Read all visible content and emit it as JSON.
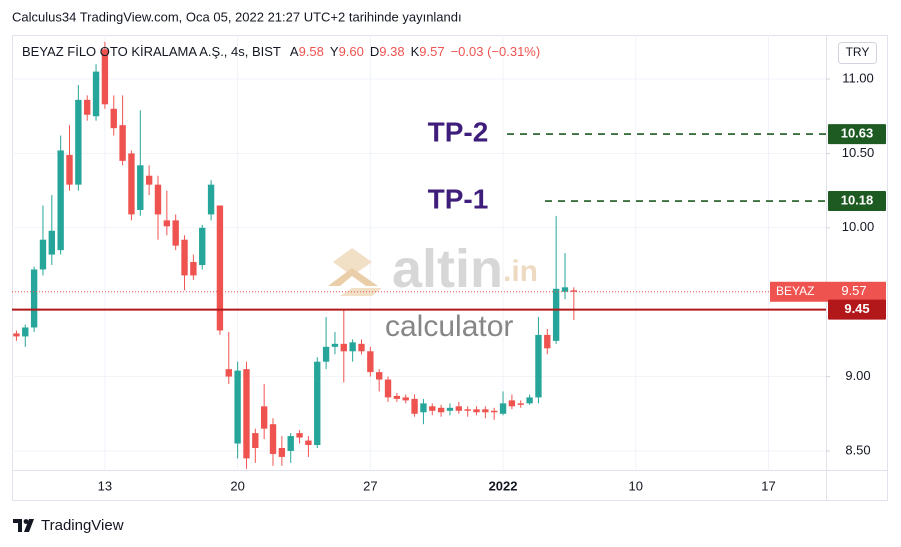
{
  "header": "Calculus34 TradingView.com, Oca 05, 2022 21:27 UTC+2 tarihinde yayınlandı",
  "footer": "TradingView",
  "chart_data": {
    "type": "candlestick",
    "symbol": "BEYAZ FİLO OTO KİRALAMA A.Ş., 4s, BIST",
    "legend_values": [
      {
        "key": "A",
        "label": "9.58"
      },
      {
        "key": "Y",
        "label": "9.60"
      },
      {
        "key": "D",
        "label": "9.38"
      },
      {
        "key": "K",
        "label": "9.57"
      }
    ],
    "change": "−0.03 (−0.31%)",
    "currency": "TRY",
    "ticker": "BEYAZ",
    "watermark": {
      "brand": "altin",
      "suffix": ".in",
      "sub": "calculator"
    },
    "up_color": "#26a69a",
    "down_color": "#ef5350",
    "grid": true,
    "categories": [
      null,
      null,
      null,
      null,
      null,
      null,
      null,
      null,
      null,
      null,
      "13",
      null,
      null,
      null,
      null,
      null,
      null,
      null,
      null,
      null,
      null,
      null,
      null,
      null,
      null,
      "20",
      null,
      null,
      null,
      null,
      null,
      null,
      null,
      null,
      null,
      null,
      null,
      null,
      null,
      null,
      "27",
      null,
      null,
      null,
      null,
      null,
      null,
      null,
      null,
      null,
      null,
      null,
      null,
      null,
      null,
      "2022",
      null,
      null,
      null,
      null,
      null,
      null,
      null,
      null,
      null,
      null,
      null,
      null,
      null,
      null,
      "10",
      null,
      null,
      null,
      null,
      null,
      null,
      null,
      null,
      null,
      null,
      null,
      null,
      null,
      null,
      "17",
      null,
      null,
      null,
      null,
      null,
      null
    ],
    "open": [
      9.29,
      9.27,
      9.33,
      9.72,
      9.82,
      9.85,
      10.49,
      10.29,
      10.86,
      10.75,
      11.2,
      10.8,
      10.69,
      10.5,
      10.12,
      10.35,
      10.29,
      10.05,
      10.05,
      9.92,
      9.77,
      9.75,
      10.09,
      10.15,
      9.05,
      8.55,
      9.05,
      8.62,
      8.8,
      8.68,
      8.52,
      8.5,
      8.62,
      8.57,
      8.54,
      9.1,
      9.2,
      9.22,
      9.17,
      9.22,
      9.17,
      9.03,
      8.98,
      8.87,
      8.86,
      8.85,
      8.76,
      8.8,
      8.79,
      8.77,
      8.8,
      8.78,
      8.78,
      8.78,
      8.77,
      8.75,
      8.84,
      8.82,
      8.82,
      8.86,
      9.28,
      9.24,
      9.57,
      9.58,
      null,
      null,
      null,
      null,
      null,
      null,
      null,
      null,
      null,
      null,
      null,
      null,
      null,
      null,
      null,
      null,
      null,
      null,
      null,
      null,
      null,
      null,
      null,
      null,
      null,
      null,
      null,
      null
    ],
    "high": [
      9.31,
      9.35,
      9.74,
      10.15,
      10.22,
      10.62,
      10.69,
      10.96,
      10.89,
      11.1,
      11.25,
      10.89,
      10.89,
      10.52,
      10.79,
      10.42,
      10.35,
      10.25,
      10.09,
      9.95,
      9.82,
      10.02,
      10.32,
      10.15,
      9.3,
      9.1,
      9.1,
      8.65,
      8.95,
      8.72,
      8.6,
      8.62,
      8.64,
      8.6,
      9.13,
      9.4,
      9.3,
      9.45,
      9.25,
      9.25,
      9.2,
      9.05,
      9.0,
      8.89,
      8.88,
      8.88,
      8.85,
      8.82,
      8.81,
      8.82,
      8.83,
      8.8,
      8.8,
      8.8,
      8.79,
      8.9,
      8.88,
      8.84,
      8.88,
      9.4,
      9.32,
      10.08,
      9.83,
      9.6,
      null,
      null,
      null,
      null,
      null,
      null,
      null,
      null,
      null,
      null,
      null,
      null,
      null,
      null,
      null,
      null,
      null,
      null,
      null,
      null,
      null,
      null,
      null,
      null,
      null,
      null,
      null,
      null
    ],
    "low": [
      9.24,
      9.2,
      9.3,
      9.68,
      9.75,
      9.82,
      10.25,
      10.25,
      10.72,
      10.72,
      10.8,
      10.62,
      10.42,
      10.05,
      10.08,
      10.22,
      9.92,
      9.95,
      9.85,
      9.58,
      9.65,
      9.72,
      10.05,
      9.28,
      8.95,
      8.45,
      8.38,
      8.42,
      8.58,
      8.4,
      8.4,
      8.42,
      8.55,
      8.46,
      8.52,
      9.05,
      9.15,
      8.96,
      9.1,
      9.15,
      9.0,
      8.9,
      8.83,
      8.83,
      8.82,
      8.73,
      8.68,
      8.74,
      8.73,
      8.74,
      8.75,
      8.73,
      8.74,
      8.72,
      8.71,
      8.74,
      8.78,
      8.79,
      8.81,
      8.82,
      9.15,
      9.22,
      9.52,
      9.38,
      null,
      null,
      null,
      null,
      null,
      null,
      null,
      null,
      null,
      null,
      null,
      null,
      null,
      null,
      null,
      null,
      null,
      null,
      null,
      null,
      null,
      null,
      null,
      null,
      null,
      null,
      null,
      null
    ],
    "close": [
      9.27,
      9.33,
      9.72,
      9.92,
      9.98,
      10.52,
      10.29,
      10.86,
      10.76,
      11.05,
      10.83,
      10.67,
      10.45,
      10.09,
      10.42,
      10.29,
      10.09,
      10.01,
      9.88,
      9.68,
      9.68,
      10.0,
      10.29,
      9.31,
      9.0,
      9.04,
      8.45,
      8.52,
      8.65,
      8.48,
      8.46,
      8.6,
      8.59,
      8.54,
      9.1,
      9.2,
      9.22,
      9.17,
      9.23,
      9.17,
      9.03,
      8.98,
      8.86,
      8.85,
      8.84,
      8.75,
      8.82,
      8.77,
      8.76,
      8.79,
      8.77,
      8.77,
      8.76,
      8.76,
      8.76,
      8.82,
      8.8,
      8.81,
      8.86,
      9.28,
      9.19,
      9.59,
      9.6,
      9.57,
      null,
      null,
      null,
      null,
      null,
      null,
      null,
      null,
      null,
      null,
      null,
      null,
      null,
      null,
      null,
      null,
      null,
      null,
      null,
      null,
      null,
      null,
      null,
      null,
      null,
      null,
      null,
      null
    ],
    "ylim": [
      8.372,
      11.296
    ],
    "yticks": [
      {
        "value": 8.5,
        "label": "8.50"
      },
      {
        "value": 9,
        "label": "9.00"
      },
      {
        "value": 10,
        "label": "10.00"
      },
      {
        "value": 10.5,
        "label": "10.50"
      },
      {
        "value": 11,
        "label": "11.00"
      }
    ],
    "levels": [
      {
        "label": "TP-2",
        "value": 10.63,
        "color": "#1e5b22"
      },
      {
        "label": "TP-1",
        "value": 10.18,
        "color": "#1e5b22"
      },
      {
        "value": 9.45,
        "color": "#b2171a"
      }
    ]
  }
}
